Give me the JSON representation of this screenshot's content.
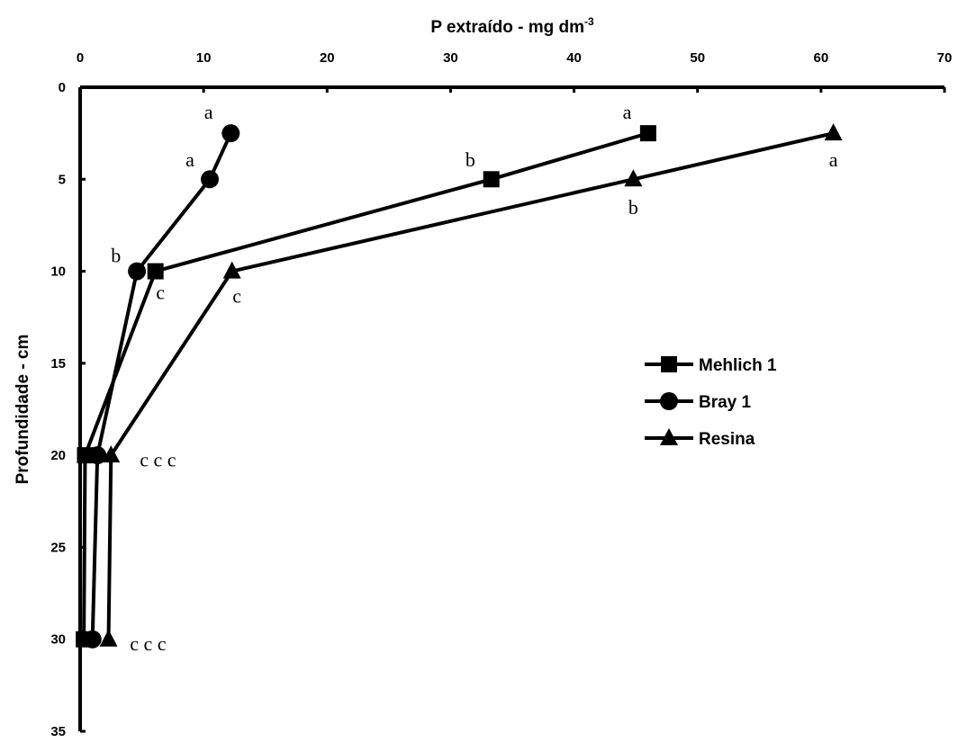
{
  "chart_data": {
    "type": "line",
    "x_label": "P extraído - mg dm",
    "x_label_sup": "-3",
    "y_label": "Profundidade - cm",
    "xlim": [
      0,
      70
    ],
    "ylim": [
      0,
      35
    ],
    "x_ticks": [
      0,
      10,
      20,
      30,
      40,
      50,
      60,
      70
    ],
    "y_ticks": [
      0,
      5,
      10,
      15,
      20,
      25,
      30,
      35
    ],
    "x_axis_position": "top",
    "y_axis_inverted": true,
    "grid": false,
    "legend_position": "right-middle",
    "series": [
      {
        "name": "Mehlich 1",
        "marker": "square",
        "points": [
          {
            "x": 46,
            "y": 2.5
          },
          {
            "x": 33.3,
            "y": 5
          },
          {
            "x": 6.1,
            "y": 10
          },
          {
            "x": 0.4,
            "y": 20
          },
          {
            "x": 0.3,
            "y": 30
          }
        ]
      },
      {
        "name": "Bray 1",
        "marker": "circle",
        "points": [
          {
            "x": 12.2,
            "y": 2.5
          },
          {
            "x": 10.5,
            "y": 5
          },
          {
            "x": 4.6,
            "y": 10
          },
          {
            "x": 1.4,
            "y": 20
          },
          {
            "x": 1.0,
            "y": 30
          }
        ]
      },
      {
        "name": "Resina",
        "marker": "triangle",
        "points": [
          {
            "x": 61,
            "y": 2.5
          },
          {
            "x": 44.8,
            "y": 5
          },
          {
            "x": 12.3,
            "y": 10
          },
          {
            "x": 2.5,
            "y": 20
          },
          {
            "x": 2.3,
            "y": 30
          }
        ]
      }
    ],
    "annotations": [
      {
        "text": "a",
        "x": 10.4,
        "y": 1.7
      },
      {
        "text": "a",
        "x": 8.9,
        "y": 4.3
      },
      {
        "text": "b",
        "x": 2.9,
        "y": 9.5
      },
      {
        "text": "c",
        "x": 6.5,
        "y": 11.5
      },
      {
        "text": "a",
        "x": 44.3,
        "y": 1.7
      },
      {
        "text": "b",
        "x": 31.6,
        "y": 4.3
      },
      {
        "text": "a",
        "x": 61,
        "y": 4.3
      },
      {
        "text": "b",
        "x": 44.8,
        "y": 6.9
      },
      {
        "text": "c",
        "x": 12.7,
        "y": 11.7
      },
      {
        "text": "c c c",
        "x": 6.3,
        "y": 20.6
      },
      {
        "text": "c c c",
        "x": 5.5,
        "y": 30.6
      }
    ]
  }
}
